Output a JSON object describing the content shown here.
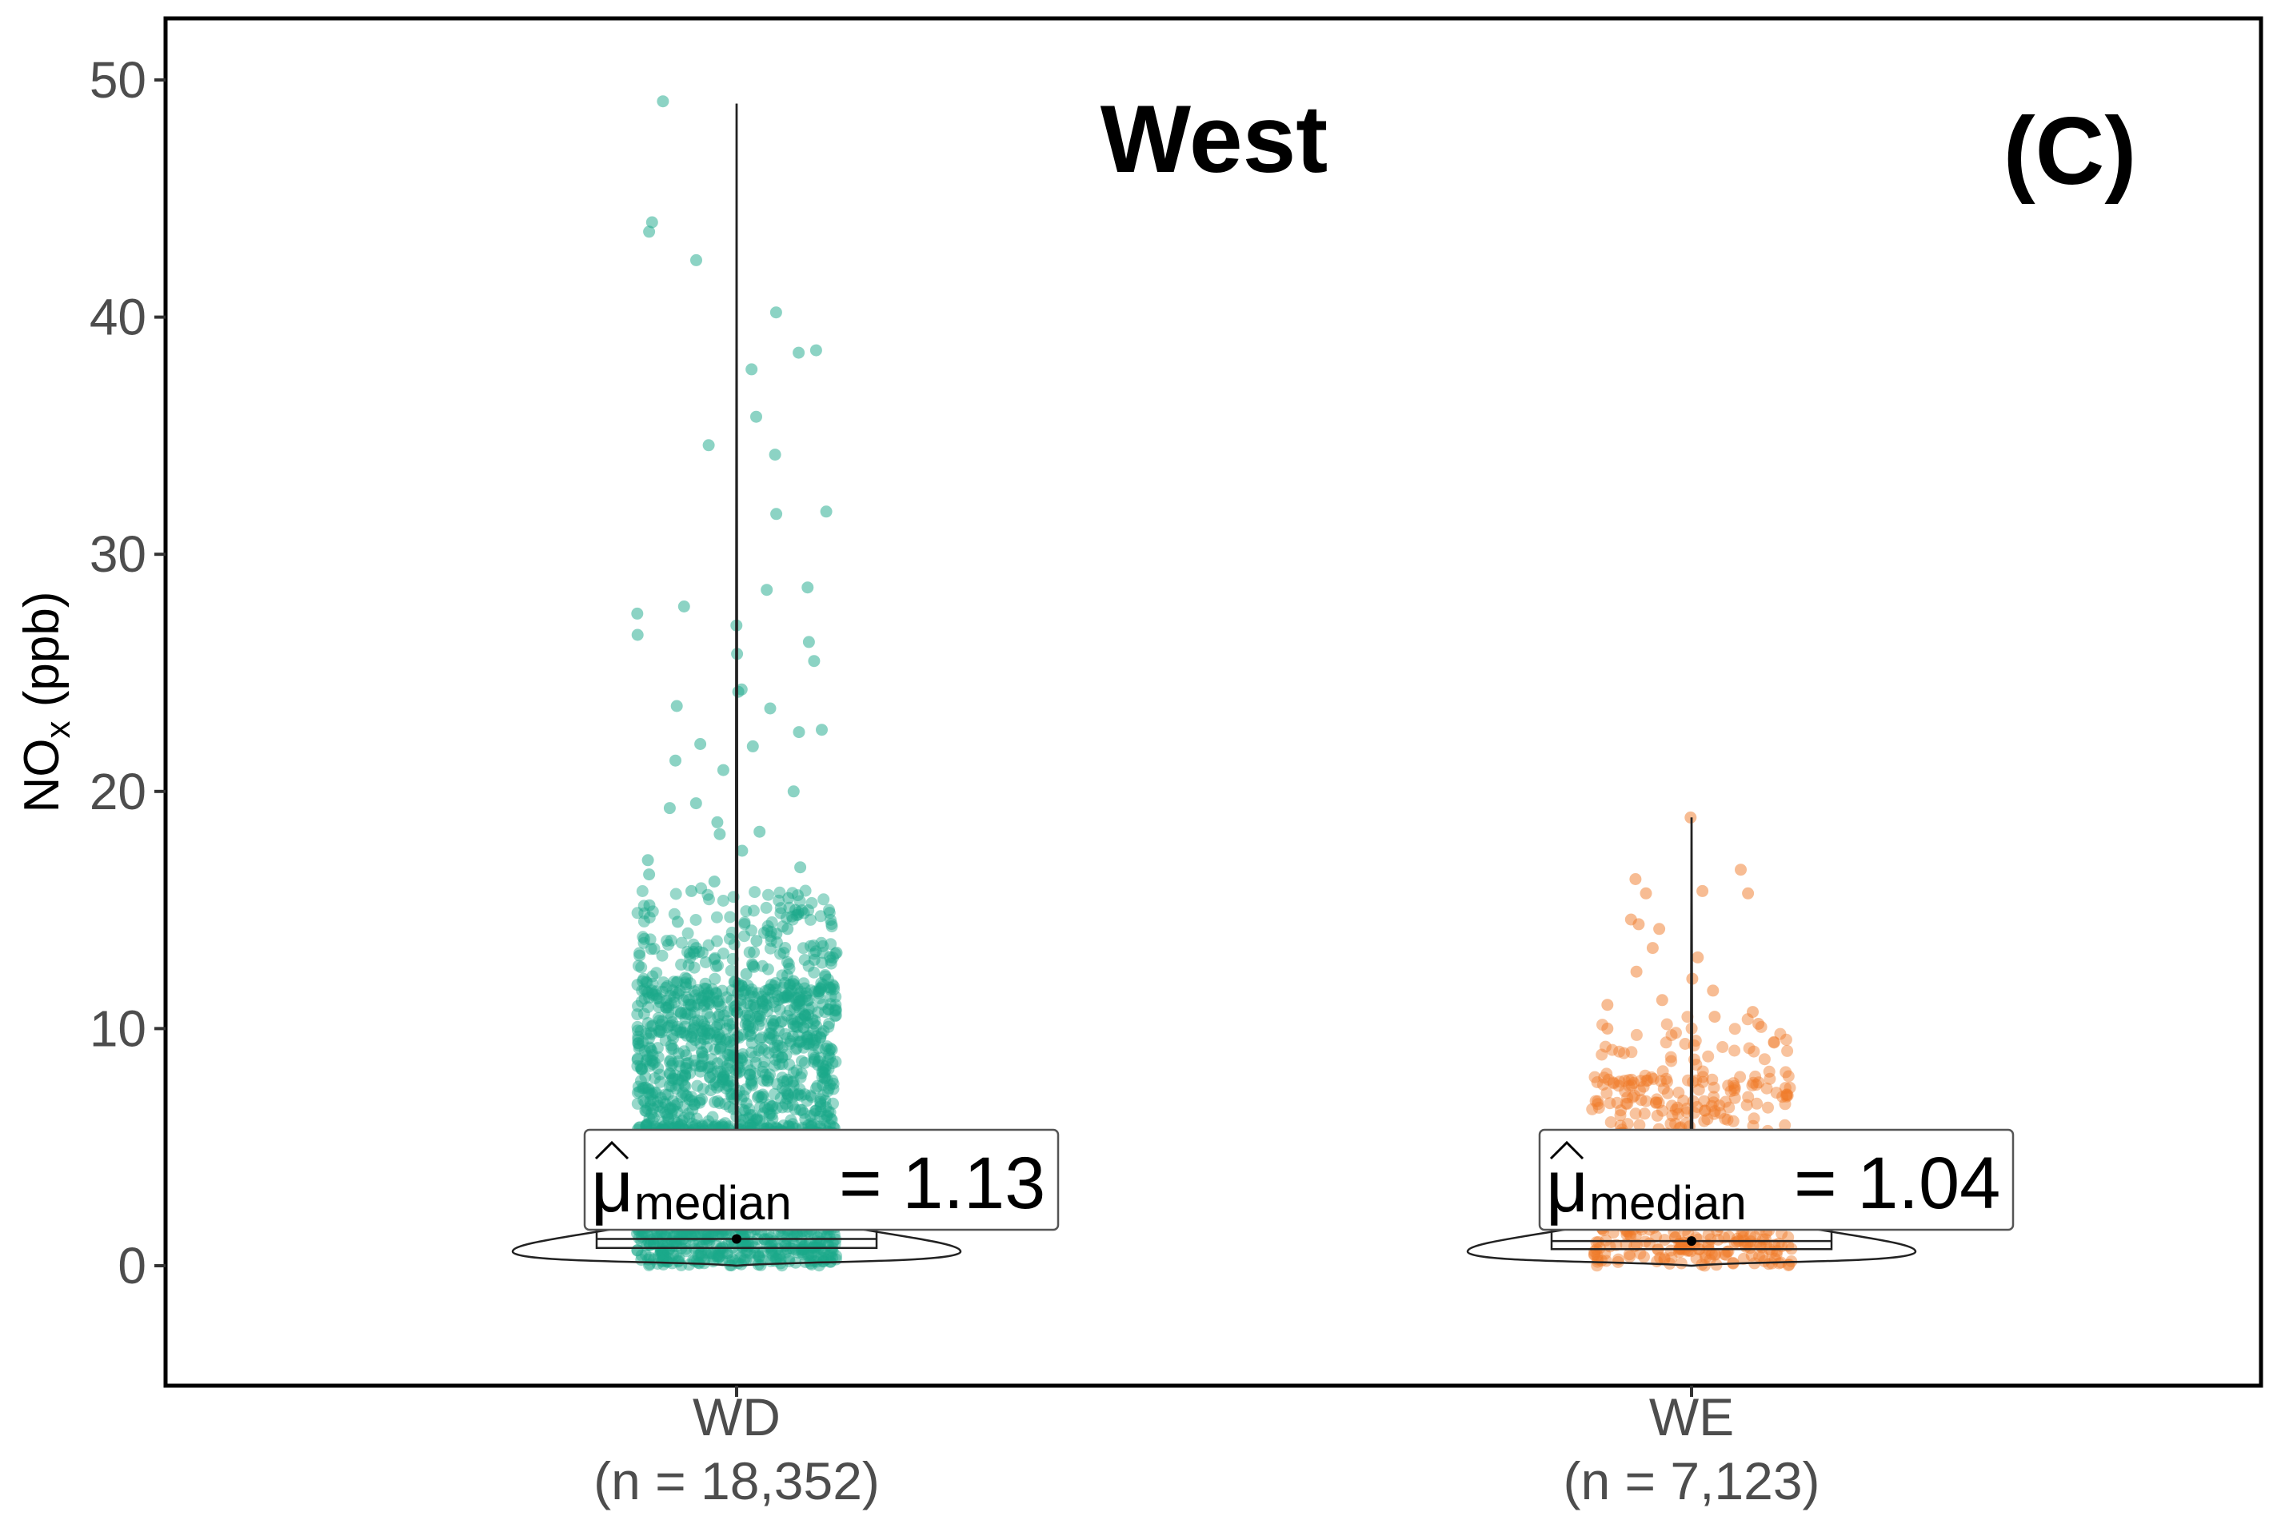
{
  "chart_data": {
    "type": "scatter",
    "subtype": "violin-box-jitter",
    "title": "West",
    "panel_label": "(C)",
    "ylabel": {
      "main": "NO",
      "sub": "x",
      "unit": " (ppb)"
    },
    "xlabel": "",
    "ylim": [
      -5,
      52
    ],
    "yticks": [
      0,
      10,
      20,
      30,
      40,
      50
    ],
    "grid": false,
    "groups": [
      {
        "name": "WD",
        "n_label": "(n = 18,352)",
        "color": "#1aa88a",
        "median": 1.13,
        "median_label": "median",
        "median_value_text": "= 1.13",
        "q1": 0.75,
        "q3": 1.75,
        "whisker_low": 0.0,
        "whisker_high": 49.0,
        "max_point": 49.1,
        "outlier_values": [
          49.1,
          44.0,
          43.6,
          42.4,
          40.2,
          38.6,
          38.5,
          37.8,
          35.8,
          34.6,
          34.2,
          31.8,
          31.7,
          28.6,
          28.5,
          27.8,
          27.5,
          27.0,
          26.6,
          26.3,
          25.8,
          25.5,
          24.3,
          24.2,
          23.6,
          23.5,
          22.6,
          22.5,
          22.0,
          21.9,
          21.3,
          20.9,
          20.0,
          19.5,
          19.3,
          18.7,
          18.3,
          18.2,
          17.5,
          17.1,
          16.8,
          16.5,
          16.2,
          15.8,
          15.5,
          15.2,
          15.0,
          14.8,
          14.5,
          14.2,
          14.0,
          13.7,
          13.4,
          13.2,
          12.9,
          12.6,
          12.3,
          12.0
        ]
      },
      {
        "name": "WE",
        "n_label": "(n = 7,123)",
        "color": "#f07a28",
        "median": 1.04,
        "median_label": "median",
        "median_value_text": "= 1.04",
        "q1": 0.7,
        "q3": 1.6,
        "whisker_low": 0.0,
        "whisker_high": 18.9,
        "max_point": 18.9,
        "outlier_values": [
          18.9,
          16.7,
          16.3,
          15.8,
          15.7,
          15.7,
          14.6,
          14.4,
          14.2,
          13.4,
          13.0,
          12.4,
          12.1,
          11.6,
          11.2,
          11.0,
          10.7,
          10.5,
          10.2,
          10.0
        ]
      }
    ],
    "mu_symbol": "μ"
  }
}
